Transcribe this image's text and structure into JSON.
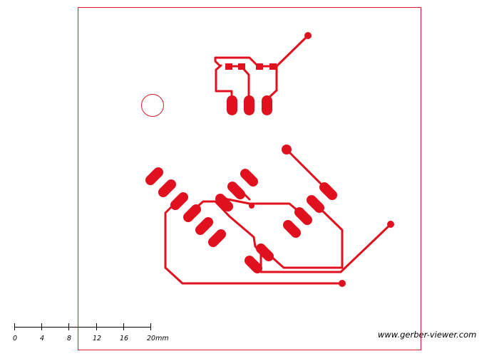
{
  "colors": {
    "copper": "#e0101e",
    "outline": "#e01a2a"
  },
  "scale_bar": {
    "ticks": [
      "0",
      "4",
      "8",
      "12",
      "16",
      "20mm"
    ]
  },
  "credit": {
    "text": "www.gerber-viewer.com"
  },
  "icons": {
    "mounting_hole": "circle-outline-icon"
  }
}
